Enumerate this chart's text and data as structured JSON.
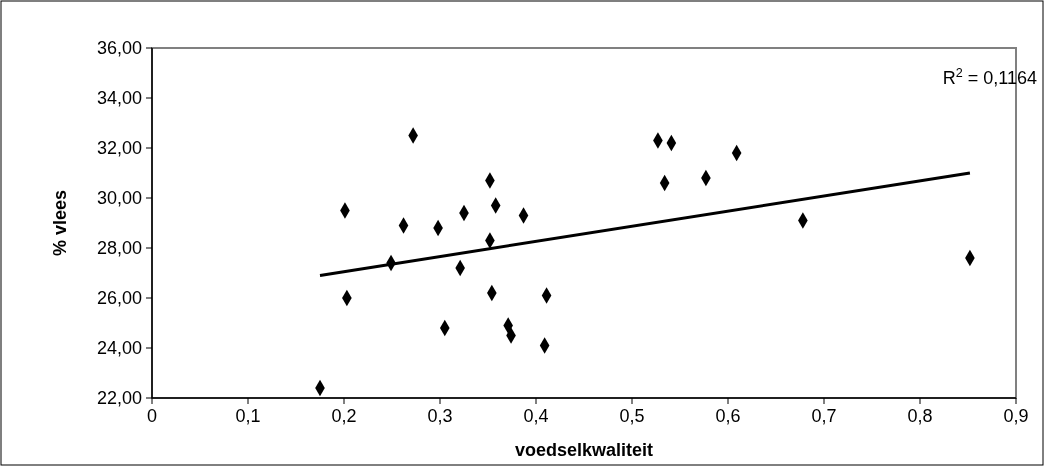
{
  "chart_data": {
    "type": "scatter",
    "xlabel": "voedselkwaliteit",
    "ylabel": "% vlees",
    "annotations": [
      "R$^{2}$ = 0,1164"
    ],
    "grid": false,
    "xlim": [
      0,
      0.9
    ],
    "ylim": [
      22,
      36
    ],
    "xticks": [
      0,
      {
        "value": 0.1,
        "label": "0,1"
      },
      {
        "value": 0.2,
        "label": "0,2"
      },
      {
        "value": 0.3,
        "label": "0,3"
      },
      {
        "value": 0.4,
        "label": "0,4"
      },
      {
        "value": 0.5,
        "label": "0,5"
      },
      {
        "value": 0.6,
        "label": "0,6"
      },
      {
        "value": 0.7,
        "label": "0,7"
      },
      {
        "value": 0.8,
        "label": "0,8"
      },
      {
        "value": 0.9,
        "label": "0,9"
      }
    ],
    "yticks": [
      {
        "value": 22,
        "label": "22,00"
      },
      {
        "value": 24,
        "label": "24,00"
      },
      {
        "value": 26,
        "label": "26,00"
      },
      {
        "value": 28,
        "label": "28,00"
      },
      {
        "value": 30,
        "label": "30,00"
      },
      {
        "value": 32,
        "label": "32,00"
      },
      {
        "value": 34,
        "label": "34,00"
      },
      {
        "value": 36,
        "label": "36,00"
      }
    ],
    "series": [
      {
        "color": "#000000",
        "marker": "diamond",
        "x": [
          0.175,
          0.201,
          0.203,
          0.249,
          0.262,
          0.272,
          0.298,
          0.305,
          0.321,
          0.325,
          0.352,
          0.352,
          0.354,
          0.358,
          0.371,
          0.374,
          0.387,
          0.409,
          0.411,
          0.527,
          0.534,
          0.541,
          0.577,
          0.609,
          0.678,
          0.852
        ],
        "values": [
          22.4,
          29.5,
          26.0,
          27.4,
          28.9,
          32.5,
          28.8,
          24.8,
          27.2,
          29.4,
          30.7,
          28.3,
          26.2,
          29.7,
          24.9,
          24.5,
          29.3,
          24.1,
          26.1,
          32.3,
          30.6,
          32.2,
          30.8,
          31.8,
          29.1,
          27.6
        ]
      },
      {
        "type": "line",
        "color": "#000000",
        "x": [
          0.175,
          0.852
        ],
        "values": [
          26.9,
          31.0
        ],
        "marker": "none",
        "line_style": "solid"
      }
    ]
  }
}
